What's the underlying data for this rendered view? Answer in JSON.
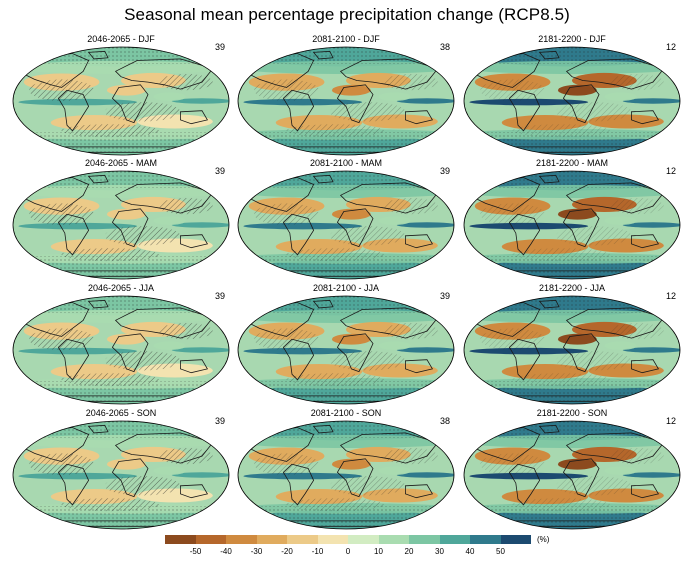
{
  "title": "Seasonal mean percentage precipitation change (RCP8.5)",
  "panels": [
    {
      "label": "2046-2065 - DJF",
      "count": "39",
      "regime": "mild"
    },
    {
      "label": "2081-2100 - DJF",
      "count": "38",
      "regime": "strong"
    },
    {
      "label": "2181-2200 - DJF",
      "count": "12",
      "regime": "extreme"
    },
    {
      "label": "2046-2065 - MAM",
      "count": "39",
      "regime": "mild"
    },
    {
      "label": "2081-2100 - MAM",
      "count": "39",
      "regime": "strong"
    },
    {
      "label": "2181-2200 - MAM",
      "count": "12",
      "regime": "extreme"
    },
    {
      "label": "2046-2065 - JJA",
      "count": "39",
      "regime": "mild"
    },
    {
      "label": "2081-2100 - JJA",
      "count": "39",
      "regime": "strong"
    },
    {
      "label": "2181-2200 - JJA",
      "count": "12",
      "regime": "extreme"
    },
    {
      "label": "2046-2065 - SON",
      "count": "39",
      "regime": "mild"
    },
    {
      "label": "2081-2100 - SON",
      "count": "38",
      "regime": "strong"
    },
    {
      "label": "2181-2200 - SON",
      "count": "12",
      "regime": "extreme"
    }
  ],
  "colorbar": {
    "unit": "(%)",
    "ticks": [
      "-50",
      "-40",
      "-30",
      "-20",
      "-10",
      "0",
      "10",
      "20",
      "30",
      "40",
      "50"
    ],
    "colors": [
      "#8c4a1e",
      "#b5672b",
      "#cf8a3f",
      "#e0ab5e",
      "#ecca88",
      "#f3e3b0",
      "#d2ecc2",
      "#a9dcb0",
      "#7cc6a3",
      "#4fa79a",
      "#2f7a8c",
      "#1c4a70"
    ]
  },
  "colors": {
    "ocean_base": "#a8d8b0",
    "land_base": "#b9deba",
    "hatch": "#222222",
    "coast": "#1a1a1a"
  }
}
